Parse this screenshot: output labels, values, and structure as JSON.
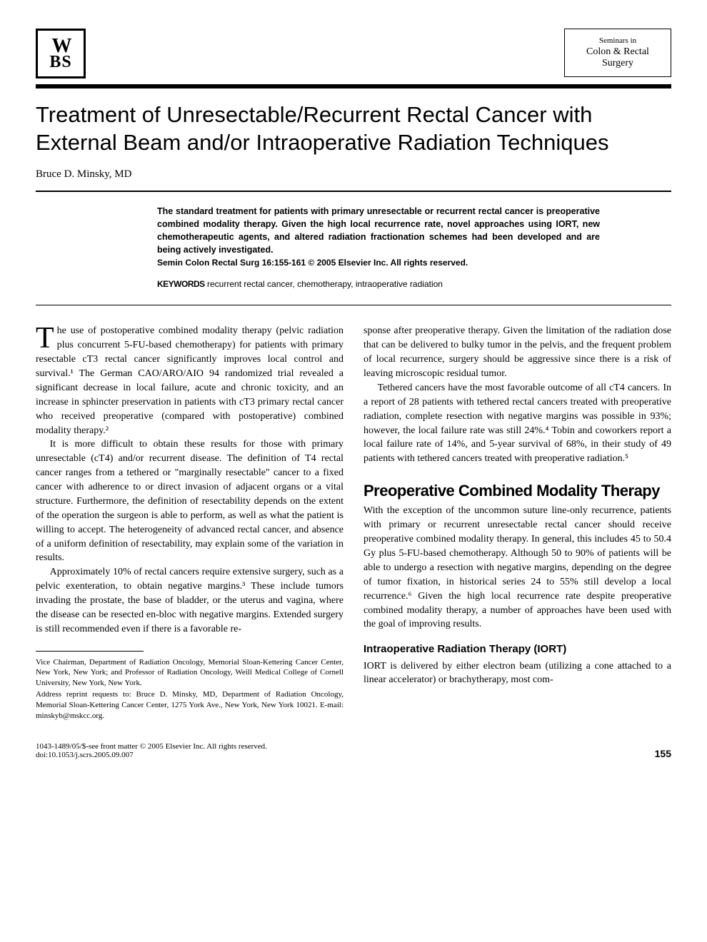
{
  "publisher_logo": {
    "row1": "W",
    "row2": "BS"
  },
  "journal": {
    "line1": "Seminars in",
    "line2": "Colon & Rectal",
    "line3": "Surgery"
  },
  "article": {
    "title": "Treatment of Unresectable/Recurrent Rectal Cancer with External Beam and/or Intraoperative Radiation Techniques",
    "author": "Bruce D. Minsky, MD"
  },
  "abstract": {
    "text": "The standard treatment for patients with primary unresectable or recurrent rectal cancer is preoperative combined modality therapy. Given the high local recurrence rate, novel approaches using IORT, new chemotherapeutic agents, and altered radiation fractionation schemes had been developed and are being actively investigated.",
    "citation": "Semin Colon Rectal Surg 16:155-161 © 2005 Elsevier Inc. All rights reserved."
  },
  "keywords": {
    "label": "KEYWORDS",
    "text": "recurrent rectal cancer, chemotherapy, intraoperative radiation"
  },
  "body": {
    "p1": "he use of postoperative combined modality therapy (pelvic radiation plus concurrent 5-FU-based chemotherapy) for patients with primary resectable cT3 rectal cancer significantly improves local control and survival.¹ The German CAO/ARO/AIO 94 randomized trial revealed a significant decrease in local failure, acute and chronic toxicity, and an increase in sphincter preservation in patients with cT3 primary rectal cancer who received preoperative (compared with postoperative) combined modality therapy.²",
    "dropcap": "T",
    "p2": "It is more difficult to obtain these results for those with primary unresectable (cT4) and/or recurrent disease. The definition of T4 rectal cancer ranges from a tethered or \"marginally resectable\" cancer to a fixed cancer with adherence to or direct invasion of adjacent organs or a vital structure. Furthermore, the definition of resectability depends on the extent of the operation the surgeon is able to perform, as well as what the patient is willing to accept. The heterogeneity of advanced rectal cancer, and absence of a uniform definition of resectability, may explain some of the variation in results.",
    "p3": "Approximately 10% of rectal cancers require extensive surgery, such as a pelvic exenteration, to obtain negative margins.³ These include tumors invading the prostate, the base of bladder, or the uterus and vagina, where the disease can be resected en-bloc with negative margins. Extended surgery is still recommended even if there is a favorable re-",
    "p4": "sponse after preoperative therapy. Given the limitation of the radiation dose that can be delivered to bulky tumor in the pelvis, and the frequent problem of local recurrence, surgery should be aggressive since there is a risk of leaving microscopic residual tumor.",
    "p5": "Tethered cancers have the most favorable outcome of all cT4 cancers. In a report of 28 patients with tethered rectal cancers treated with preoperative radiation, complete resection with negative margins was possible in 93%; however, the local failure rate was still 24%.⁴ Tobin and coworkers report a local failure rate of 14%, and 5-year survival of 68%, in their study of 49 patients with tethered cancers treated with preoperative radiation.⁵"
  },
  "section1": {
    "heading": "Preoperative Combined Modality Therapy",
    "p1": "With the exception of the uncommon suture line-only recurrence, patients with primary or recurrent unresectable rectal cancer should receive preoperative combined modality therapy. In general, this includes 45 to 50.4 Gy plus 5-FU-based chemotherapy. Although 50 to 90% of patients will be able to undergo a resection with negative margins, depending on the degree of tumor fixation, in historical series 24 to 55% still develop a local recurrence.⁶ Given the high local recurrence rate despite preoperative combined modality therapy, a number of approaches have been used with the goal of improving results."
  },
  "section2": {
    "heading": "Intraoperative Radiation Therapy (IORT)",
    "p1": "IORT is delivered by either electron beam (utilizing a cone attached to a linear accelerator) or brachytherapy, most com-"
  },
  "footnotes": {
    "affiliation": "Vice Chairman, Department of Radiation Oncology, Memorial Sloan-Kettering Cancer Center, New York, New York; and Professor of Radiation Oncology, Weill Medical College of Cornell University, New York, New York.",
    "reprint": "Address reprint requests to: Bruce D. Minsky, MD, Department of Radiation Oncology, Memorial Sloan-Kettering Cancer Center, 1275 York Ave., New York, New York 10021. E-mail: minskyb@mskcc.org."
  },
  "footer": {
    "copyright": "1043-1489/05/$-see front matter © 2005 Elsevier Inc. All rights reserved.",
    "doi": "doi:10.1053/j.scrs.2005.09.007",
    "page": "155"
  },
  "colors": {
    "text": "#000000",
    "background": "#ffffff"
  }
}
